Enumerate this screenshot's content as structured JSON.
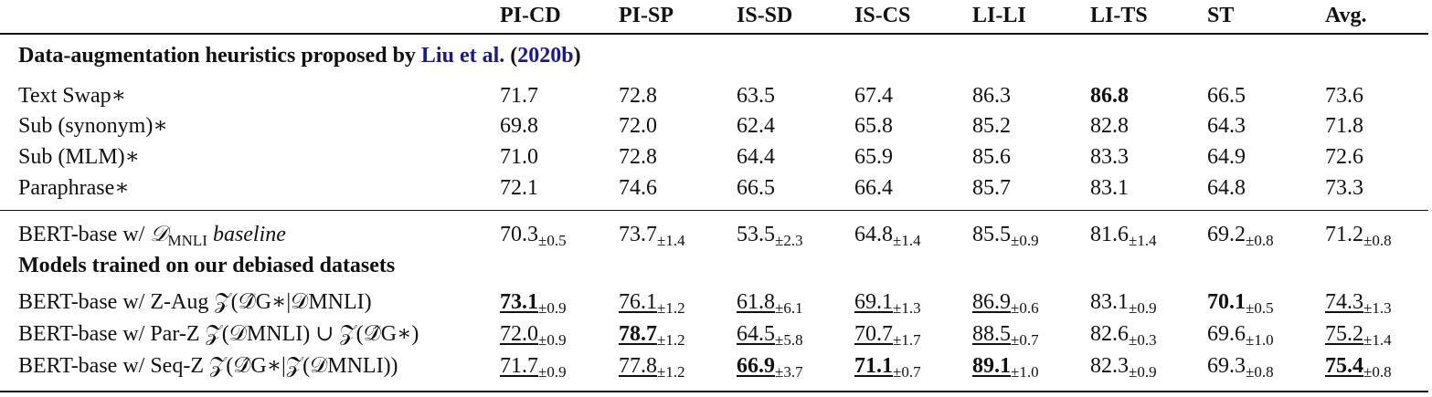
{
  "columns": [
    "PI-CD",
    "PI-SP",
    "IS-SD",
    "IS-CS",
    "LI-LI",
    "LI-TS",
    "ST",
    "Avg."
  ],
  "section1": {
    "title_prefix": "Data-augmentation heuristics proposed by",
    "cite_author": "Liu et al.",
    "cite_year": "2020b",
    "rows": [
      {
        "label": "Text Swap∗",
        "values": [
          "71.7",
          "72.8",
          "63.5",
          "67.4",
          "86.3",
          "86.8",
          "66.5",
          "73.6"
        ],
        "bold": [
          false,
          false,
          false,
          false,
          false,
          true,
          false,
          false
        ]
      },
      {
        "label": "Sub (synonym)∗",
        "values": [
          "69.8",
          "72.0",
          "62.4",
          "65.8",
          "85.2",
          "82.8",
          "64.3",
          "71.8"
        ],
        "bold": [
          false,
          false,
          false,
          false,
          false,
          false,
          false,
          false
        ]
      },
      {
        "label": "Sub (MLM)∗",
        "values": [
          "71.0",
          "72.8",
          "64.4",
          "65.9",
          "85.6",
          "83.3",
          "64.9",
          "72.6"
        ],
        "bold": [
          false,
          false,
          false,
          false,
          false,
          false,
          false,
          false
        ]
      },
      {
        "label": "Paraphrase∗",
        "values": [
          "72.1",
          "74.6",
          "66.5",
          "66.4",
          "85.7",
          "83.1",
          "64.8",
          "73.3"
        ],
        "bold": [
          false,
          false,
          false,
          false,
          false,
          false,
          false,
          false
        ]
      }
    ]
  },
  "baseline": {
    "label_prefix": "BERT-base w/ ",
    "label_math": "𝒟",
    "label_sub": "MNLI",
    "label_suffix": " baseline",
    "values": [
      "70.3",
      "73.7",
      "53.5",
      "64.8",
      "85.5",
      "81.6",
      "69.2",
      "71.2"
    ],
    "stds": [
      "±0.5",
      "±1.4",
      "±2.3",
      "±1.4",
      "±0.9",
      "±1.4",
      "±0.8",
      "±0.8"
    ]
  },
  "section2": {
    "title": "Models trained on our debiased datasets",
    "rows": [
      {
        "label": "BERT-base w/ Z-Aug 𝒵(𝒟̂G∗|𝒟MNLI)",
        "values": [
          "73.1",
          "76.1",
          "61.8",
          "69.1",
          "86.9",
          "83.1",
          "70.1",
          "74.3"
        ],
        "stds": [
          "±0.9",
          "±1.2",
          "±6.1",
          "±1.3",
          "±0.6",
          "±0.9",
          "±0.5",
          "±1.3"
        ],
        "bold": [
          true,
          false,
          false,
          false,
          false,
          false,
          true,
          false
        ],
        "underline": [
          true,
          true,
          true,
          true,
          true,
          false,
          false,
          true
        ]
      },
      {
        "label": "BERT-base w/ Par-Z 𝒵(𝒟MNLI) ∪ 𝒵(𝒟̂G∗)",
        "values": [
          "72.0",
          "78.7",
          "64.5",
          "70.7",
          "88.5",
          "82.6",
          "69.6",
          "75.2"
        ],
        "stds": [
          "±0.9",
          "±1.2",
          "±5.8",
          "±1.7",
          "±0.7",
          "±0.3",
          "±1.0",
          "±1.4"
        ],
        "bold": [
          false,
          true,
          false,
          false,
          false,
          false,
          false,
          false
        ],
        "underline": [
          true,
          true,
          true,
          true,
          true,
          false,
          false,
          true
        ]
      },
      {
        "label": "BERT-base w/ Seq-Z 𝒵(𝒟̂G∗|𝒵(𝒟MNLI))",
        "values": [
          "71.7",
          "77.8",
          "66.9",
          "71.1",
          "89.1",
          "82.3",
          "69.3",
          "75.4"
        ],
        "stds": [
          "±0.9",
          "±1.2",
          "±3.7",
          "±0.7",
          "±1.0",
          "±0.9",
          "±0.8",
          "±0.8"
        ],
        "bold": [
          false,
          false,
          true,
          true,
          true,
          false,
          false,
          true
        ],
        "underline": [
          true,
          true,
          true,
          true,
          true,
          false,
          false,
          true
        ]
      }
    ]
  }
}
